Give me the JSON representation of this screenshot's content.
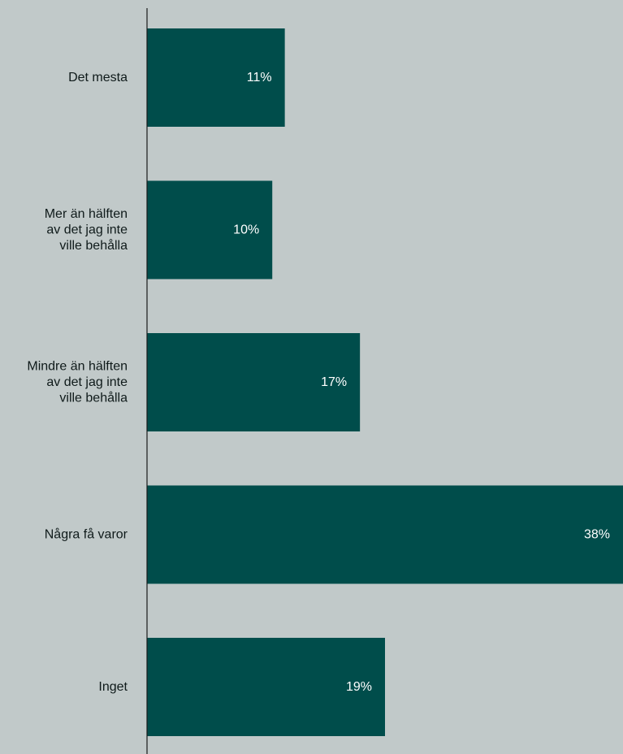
{
  "colors": {
    "background": "#c1c9c9",
    "bar": "#004d4b",
    "bar_label": "#ffffff",
    "category_label": "#0f1a1a",
    "axis": "#1a1a1a"
  },
  "chart_data": {
    "type": "bar",
    "orientation": "horizontal",
    "title": "",
    "xlabel": "",
    "ylabel": "",
    "categories": [
      "Det mesta",
      "Mer än hälften av det jag inte ville behålla",
      "Mindre än hälften av det jag inte ville behålla",
      "Några få varor",
      "Inget"
    ],
    "category_lines": [
      [
        "Det mesta"
      ],
      [
        "Mer än hälften",
        "av det jag inte",
        "ville behålla"
      ],
      [
        "Mindre än hälften",
        "av det jag inte",
        "ville behålla"
      ],
      [
        "Några få varor"
      ],
      [
        "Inget"
      ]
    ],
    "values": [
      11,
      10,
      17,
      38,
      19
    ],
    "value_labels": [
      "11%",
      "10%",
      "17%",
      "38%",
      "19%"
    ],
    "unit": "%",
    "xlim": [
      0,
      38
    ],
    "grid": false,
    "legend": "none"
  }
}
